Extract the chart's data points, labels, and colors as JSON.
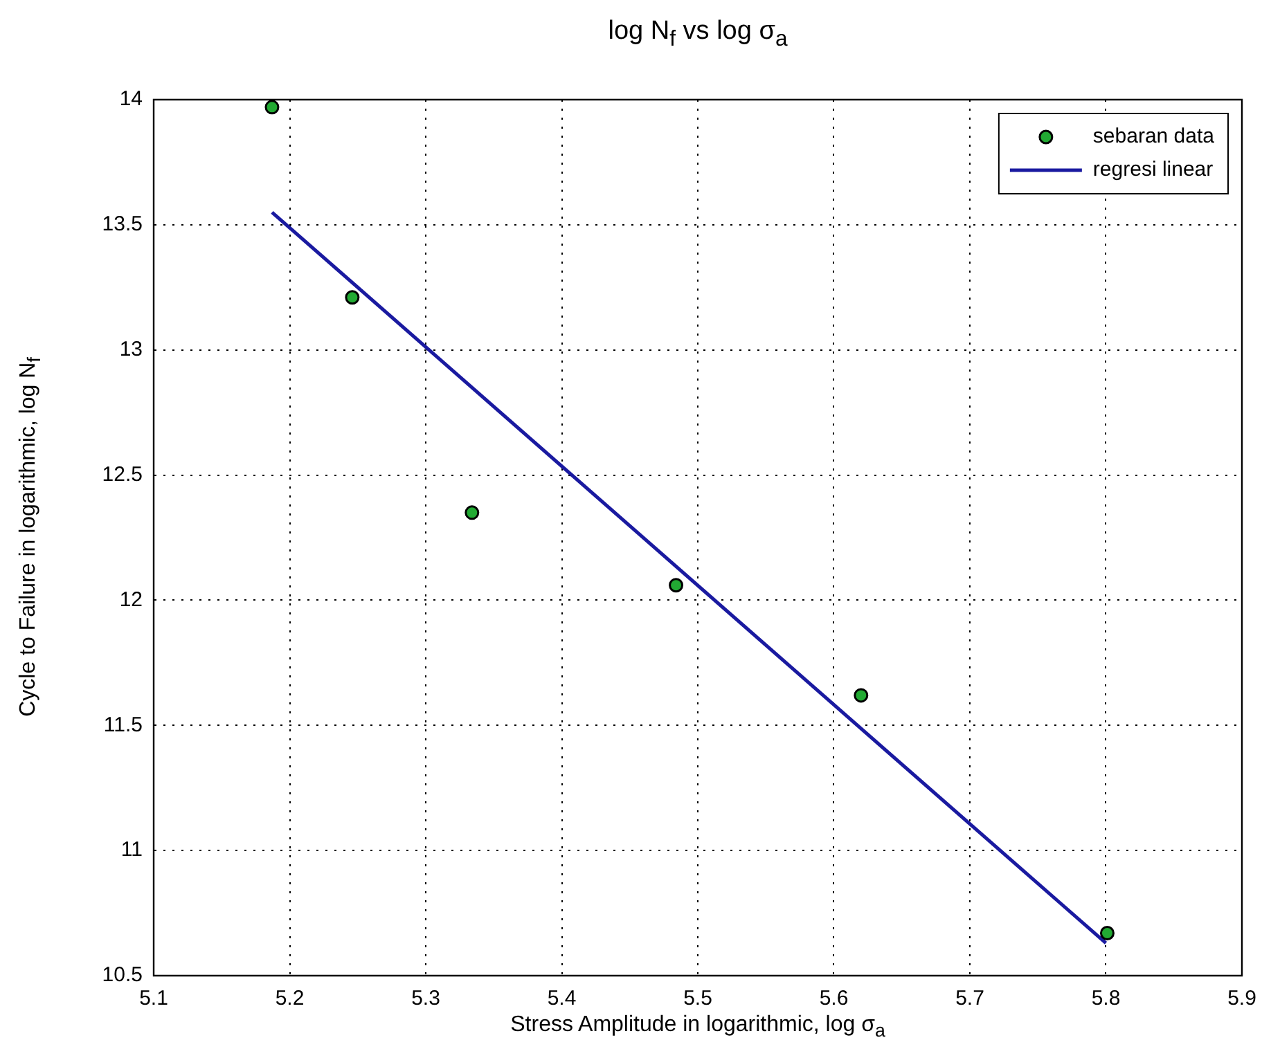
{
  "chart_data": {
    "type": "scatter",
    "title": "log N$_{f}$ vs log σ$_{a}$",
    "xlabel": "Stress Amplitude in logarithmic, log σ$_{a}$",
    "ylabel": "Cycle to Failure in logarithmic, log N$_{f}$",
    "xlim": [
      5.1,
      5.9
    ],
    "xticks": [
      5.1,
      5.2,
      5.3,
      5.4,
      5.5,
      5.6,
      5.7,
      5.8,
      5.9
    ],
    "ylim": [
      10.5,
      14
    ],
    "yticks": [
      10.5,
      11,
      11.5,
      12,
      12.5,
      13,
      13.5,
      14
    ],
    "grid": true,
    "legend": "top right",
    "series": [
      {
        "name": "sebaran data",
        "marker": "circle",
        "color": "#22aa33",
        "x": [
          5.187,
          5.246,
          5.334,
          5.484,
          5.62,
          5.801
        ],
        "values": [
          13.97,
          13.21,
          12.35,
          12.06,
          11.62,
          10.67
        ]
      },
      {
        "name": "regresi linear",
        "type": "line",
        "marker": "none",
        "color": "#1a1aa0",
        "x": [
          5.187,
          5.8
        ],
        "values": [
          13.55,
          10.63
        ]
      }
    ]
  }
}
